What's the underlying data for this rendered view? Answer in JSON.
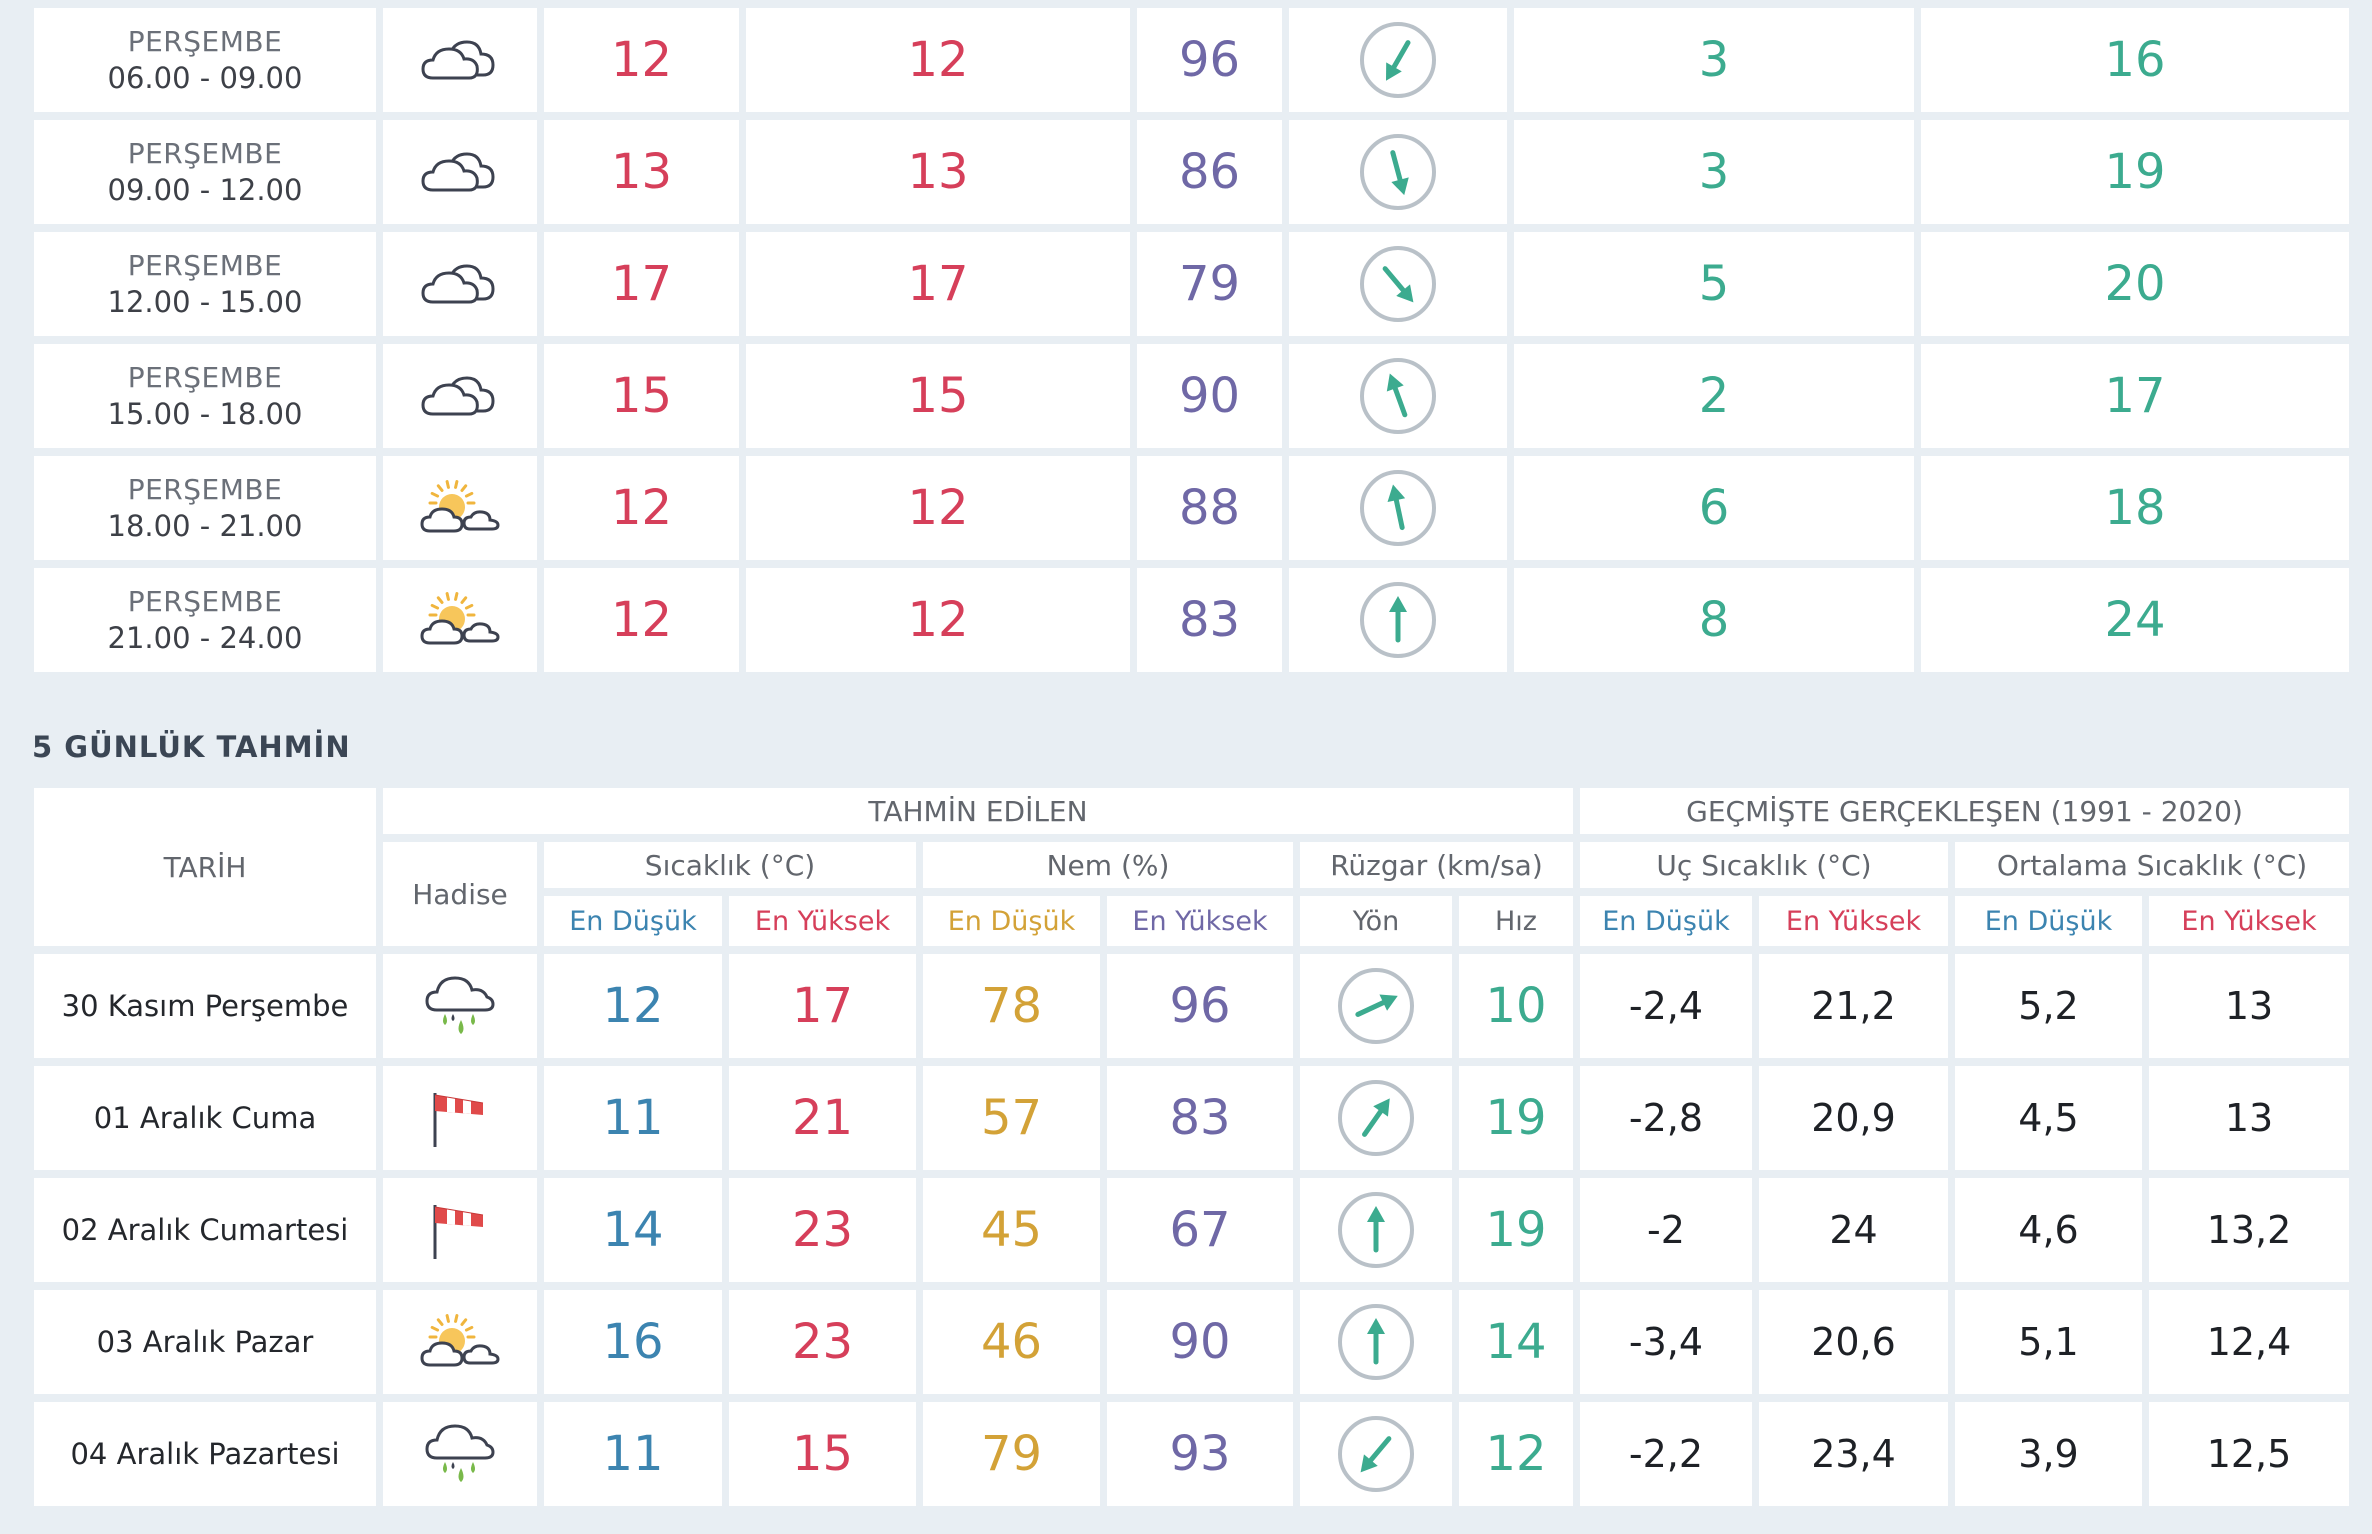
{
  "hourly": [
    {
      "day": "PERŞEMBE",
      "time": "06.00 - 09.00",
      "icon": "cloudy-icon",
      "temp": "12",
      "feels": "12",
      "humidity": "96",
      "wind_dir_deg": 210,
      "wind_speed": "3",
      "gust": "16"
    },
    {
      "day": "PERŞEMBE",
      "time": "09.00 - 12.00",
      "icon": "cloudy-icon",
      "temp": "13",
      "feels": "13",
      "humidity": "86",
      "wind_dir_deg": 165,
      "wind_speed": "3",
      "gust": "19"
    },
    {
      "day": "PERŞEMBE",
      "time": "12.00 - 15.00",
      "icon": "cloudy-icon",
      "temp": "17",
      "feels": "17",
      "humidity": "79",
      "wind_dir_deg": 140,
      "wind_speed": "5",
      "gust": "20"
    },
    {
      "day": "PERŞEMBE",
      "time": "15.00 - 18.00",
      "icon": "cloudy-icon",
      "temp": "15",
      "feels": "15",
      "humidity": "90",
      "wind_dir_deg": -20,
      "wind_speed": "2",
      "gust": "17"
    },
    {
      "day": "PERŞEMBE",
      "time": "18.00 - 21.00",
      "icon": "partly-cloudy-icon",
      "temp": "12",
      "feels": "12",
      "humidity": "88",
      "wind_dir_deg": -12,
      "wind_speed": "6",
      "gust": "18"
    },
    {
      "day": "PERŞEMBE",
      "time": "21.00 - 24.00",
      "icon": "partly-cloudy-icon",
      "temp": "12",
      "feels": "12",
      "humidity": "83",
      "wind_dir_deg": 0,
      "wind_speed": "8",
      "gust": "24"
    }
  ],
  "forecast": {
    "title": "5 GÜNLÜK TAHMİN",
    "headers": {
      "predicted": "TAHMİN EDİLEN",
      "past": "GEÇMİŞTE GERÇEKLEŞEN (1991 - 2020)",
      "date": "TARİH",
      "event": "Hadise",
      "temperature": "Sıcaklık (°C)",
      "humidity": "Nem (%)",
      "wind": "Rüzgar (km/sa)",
      "extreme_temp": "Uç Sıcaklık (°C)",
      "avg_temp": "Ortalama Sıcaklık (°C)",
      "min": "En Düşük",
      "max": "En Yüksek",
      "direction": "Yön",
      "speed": "Hız"
    },
    "rows": [
      {
        "date": "30 Kasım Perşembe",
        "icon": "rain-icon",
        "temp_min": "12",
        "temp_max": "17",
        "hum_min": "78",
        "hum_max": "96",
        "wind_dir_deg": 65,
        "wind_speed": "10",
        "ext_min": "-2,4",
        "ext_max": "21,2",
        "avg_min": "5,2",
        "avg_max": "13"
      },
      {
        "date": "01 Aralık Cuma",
        "icon": "windsock-icon",
        "temp_min": "11",
        "temp_max": "21",
        "hum_min": "57",
        "hum_max": "83",
        "wind_dir_deg": 35,
        "wind_speed": "19",
        "ext_min": "-2,8",
        "ext_max": "20,9",
        "avg_min": "4,5",
        "avg_max": "13"
      },
      {
        "date": "02 Aralık Cumartesi",
        "icon": "windsock-icon",
        "temp_min": "14",
        "temp_max": "23",
        "hum_min": "45",
        "hum_max": "67",
        "wind_dir_deg": 0,
        "wind_speed": "19",
        "ext_min": "-2",
        "ext_max": "24",
        "avg_min": "4,6",
        "avg_max": "13,2"
      },
      {
        "date": "03 Aralık Pazar",
        "icon": "partly-cloudy-icon",
        "temp_min": "16",
        "temp_max": "23",
        "hum_min": "46",
        "hum_max": "90",
        "wind_dir_deg": 0,
        "wind_speed": "14",
        "ext_min": "-3,4",
        "ext_max": "20,6",
        "avg_min": "5,1",
        "avg_max": "12,4"
      },
      {
        "date": "04 Aralık Pazartesi",
        "icon": "rain-icon",
        "temp_min": "11",
        "temp_max": "15",
        "hum_min": "79",
        "hum_max": "93",
        "wind_dir_deg": 220,
        "wind_speed": "12",
        "ext_min": "-2,2",
        "ext_max": "23,4",
        "avg_min": "3,9",
        "avg_max": "12,5"
      }
    ]
  },
  "colors": {
    "temp": "#d63f5a",
    "humidity": "#6f68a6",
    "wind": "#3cab8f",
    "min_blue": "#3c84b0",
    "min_gold": "#d3a237",
    "background": "#e8eef3"
  }
}
